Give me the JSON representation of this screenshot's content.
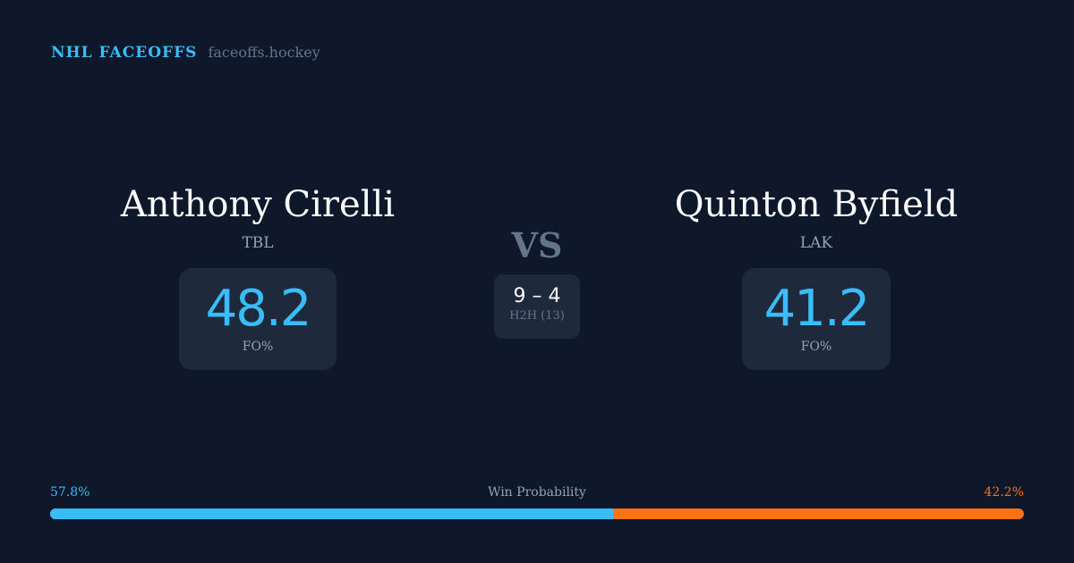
{
  "brand": {
    "title": "NHL FACEOFFS",
    "url": "faceoffs.hockey"
  },
  "player1": {
    "name": "Anthony Cirelli",
    "team": "TBL",
    "fo_pct": "48.2",
    "fo_label": "FO%"
  },
  "player2": {
    "name": "Quinton Byfield",
    "team": "LAK",
    "fo_pct": "41.2",
    "fo_label": "FO%"
  },
  "vs": "VS",
  "h2h": {
    "score": "9 – 4",
    "label": "H2H (13)"
  },
  "win_probability": {
    "label": "Win Probability",
    "p1": "57.8%",
    "p2": "42.2%",
    "p1_value": 57.8,
    "colors": {
      "p1": "#38bdf8",
      "p2": "#f97316"
    }
  }
}
